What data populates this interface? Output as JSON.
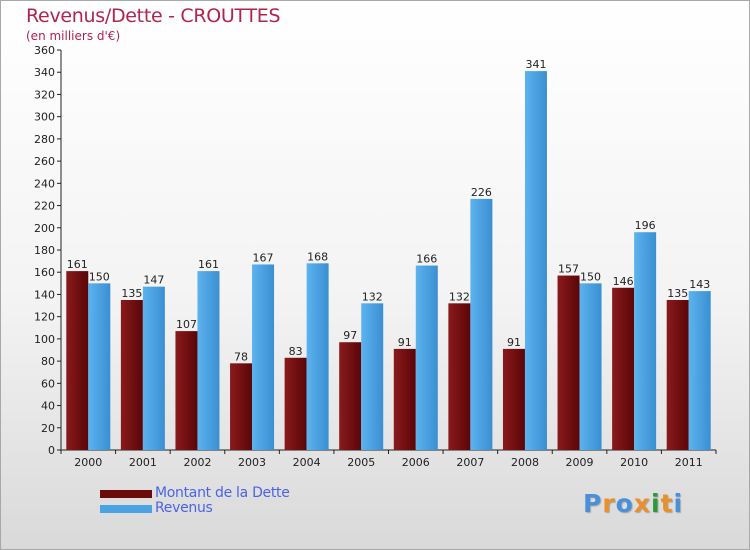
{
  "header": {
    "title": "Revenus/Dette - CROUTTES",
    "subtitle": "(en milliers d'€)"
  },
  "colors": {
    "dette": "#7a0f14",
    "revenus": "#4aa3e3",
    "title": "#b0244e",
    "legend_text": "#4b63e6"
  },
  "legend": {
    "items": [
      {
        "label": "Montant de la Dette",
        "color": "#6a0a0a"
      },
      {
        "label": "Revenus",
        "color": "#4aa3e3"
      }
    ]
  },
  "logo": {
    "text": "Proxiti",
    "letter_colors": [
      "#4a90d9",
      "#e8902a",
      "#4a90d9",
      "#e8902a",
      "#2a9a3a",
      "#e8902a",
      "#4a90d9"
    ]
  },
  "chart_data": {
    "type": "bar",
    "title": "Revenus/Dette - CROUTTES",
    "subtitle": "(en milliers d'€)",
    "categories": [
      "2000",
      "2001",
      "2002",
      "2003",
      "2004",
      "2005",
      "2006",
      "2007",
      "2008",
      "2009",
      "2010",
      "2011"
    ],
    "series": [
      {
        "name": "Montant de la Dette",
        "values": [
          161,
          135,
          107,
          78,
          83,
          97,
          91,
          132,
          91,
          157,
          146,
          135
        ]
      },
      {
        "name": "Revenus",
        "values": [
          150,
          147,
          161,
          167,
          168,
          132,
          166,
          226,
          341,
          150,
          196,
          143
        ]
      }
    ],
    "ylim": [
      0,
      360
    ],
    "yticks": [
      0,
      20,
      40,
      60,
      80,
      100,
      120,
      140,
      160,
      180,
      200,
      220,
      240,
      260,
      280,
      300,
      320,
      340,
      360
    ],
    "grid": false,
    "legend_position": "bottom-left",
    "data_labels": true
  }
}
